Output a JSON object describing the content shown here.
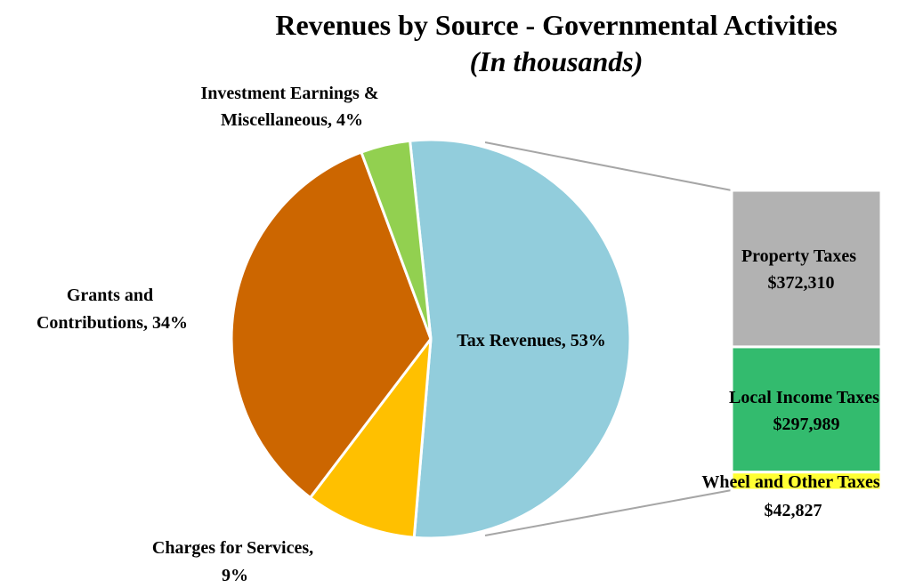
{
  "chart_data": {
    "type": "pie",
    "title": "Revenues by Source - Governmental Activities",
    "subtitle": "(In thousands)",
    "slices": [
      {
        "name": "Tax Revenues",
        "percent": 53,
        "label": "Tax Revenues, 53%",
        "color": "#92CDDC"
      },
      {
        "name": "Charges for Services",
        "percent": 9,
        "label_lines": [
          "Charges for Services,",
          "9%"
        ],
        "color": "#FFC000"
      },
      {
        "name": "Grants and Contributions",
        "percent": 34,
        "label_lines": [
          "Grants and",
          "Contributions, 34%"
        ],
        "color": "#CC6600"
      },
      {
        "name": "Investment Earnings & Miscellaneous",
        "percent": 4,
        "label_lines": [
          "Investment Earnings &",
          "Miscellaneous, 4%"
        ],
        "color": "#92D050"
      }
    ],
    "breakdown": {
      "of": "Tax Revenues",
      "type": "stacked-bar",
      "segments": [
        {
          "name": "Property Taxes",
          "value": 372310,
          "value_label": "$372,310",
          "color": "#B2B2B2"
        },
        {
          "name": "Local Income Taxes",
          "value": 297989,
          "value_label": "$297,989",
          "color": "#33BB6E"
        },
        {
          "name": "Wheel and Other Taxes",
          "value": 42827,
          "value_label": "$42,827",
          "color": "#FFFF33"
        }
      ]
    }
  }
}
